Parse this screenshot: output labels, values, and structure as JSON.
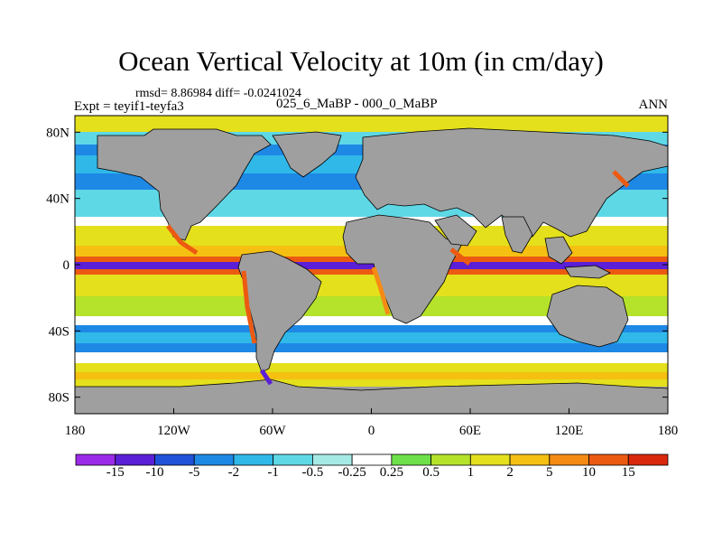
{
  "title": "Ocean Vertical Velocity at 10m (in cm/day)",
  "stats": "rmsd= 8.86984 diff= -0.0241024",
  "expt_label": "Expt = teyif1-teyfa3",
  "runs_label": "025_6_MaBP - 000_0_MaBP",
  "season": "ANN",
  "y_ticks": [
    "80N",
    "40N",
    "0",
    "40S",
    "80S"
  ],
  "y_tick_values": [
    80,
    40,
    0,
    -40,
    -80
  ],
  "x_ticks": [
    "180",
    "120W",
    "60W",
    "0",
    "60E",
    "120E",
    "180"
  ],
  "x_tick_values": [
    -180,
    -120,
    -60,
    0,
    60,
    120,
    180
  ],
  "lat_range": [
    -90,
    90
  ],
  "lon_range": [
    -180,
    180
  ],
  "land_color": "#9f9f9f",
  "colorbar": {
    "labels": [
      "-15",
      "-10",
      "-5",
      "-2",
      "-1",
      "-0.5",
      "-0.25",
      "0.25",
      "0.5",
      "1",
      "2",
      "5",
      "10",
      "15"
    ],
    "colors": [
      "#9b2be8",
      "#5a1fd6",
      "#1f52d9",
      "#1e88e5",
      "#2fb8e8",
      "#5fd8e6",
      "#a6eae6",
      "#ffffff",
      "#6ee04a",
      "#b5e22a",
      "#e4e01c",
      "#f5c012",
      "#f58b14",
      "#ec5a12",
      "#d9280c"
    ]
  }
}
